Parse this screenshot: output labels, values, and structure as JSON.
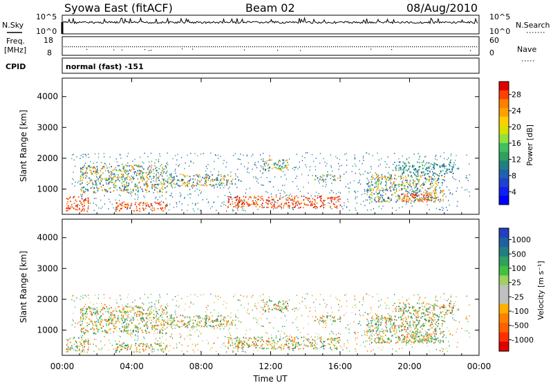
{
  "header": {
    "title": "Syowa East (fitACF)",
    "beam": "Beam 02",
    "date": "08/Aug/2010"
  },
  "noise_panel": {
    "left_label": "N.Sky",
    "right_label": "N.Search",
    "left_ticks": [
      "10^5",
      "10^0"
    ],
    "right_ticks": [
      "10^5",
      "10^0"
    ]
  },
  "freq_panel": {
    "left_label_1": "Freq.",
    "left_label_2": "[MHz]",
    "right_label": "Nave",
    "left_ticks": [
      "18",
      "8"
    ],
    "right_ticks": [
      "60",
      "0"
    ]
  },
  "cpid_panel": {
    "label": "CPID",
    "value": "normal (fast) -151"
  },
  "power_panel": {
    "ylabel": "Slant Range [km]",
    "y_ticks": [
      "1000",
      "2000",
      "3000",
      "4000"
    ],
    "colorbar_label": "Power [dB]",
    "colorbar_ticks": [
      "28",
      "24",
      "20",
      "16",
      "12",
      "8",
      "4"
    ],
    "colorbar_colors": [
      "#e00000",
      "#ff4000",
      "#ff8000",
      "#ffa000",
      "#ffd000",
      "#d8e000",
      "#90e040",
      "#40c060",
      "#30a060",
      "#208080",
      "#2060b0",
      "#2040d0",
      "#1020f0",
      "#0000ff"
    ]
  },
  "velocity_panel": {
    "ylabel": "Slant Range [km]",
    "y_ticks": [
      "1000",
      "2000",
      "3000",
      "4000"
    ],
    "colorbar_label": "Velocity [m s⁻¹]",
    "colorbar_ticks": [
      "1000",
      "500",
      "100",
      "25",
      "-25",
      "-100",
      "-500",
      "-1000"
    ],
    "colorbar_colors": [
      "#2040c0",
      "#2060a0",
      "#208080",
      "#30a060",
      "#40c040",
      "#a0d060",
      "#c0c0c0",
      "#c0c0c0",
      "#ffb000",
      "#ff8000",
      "#ff6000",
      "#ff3000",
      "#e00000"
    ]
  },
  "x_axis": {
    "label": "Time UT",
    "ticks": [
      "00:00",
      "04:00",
      "08:00",
      "12:00",
      "16:00",
      "20:00",
      "00:00"
    ]
  },
  "chart_data": {
    "type": "heatmap",
    "title": "Syowa East (fitACF)",
    "xlabel": "Time UT",
    "ylabel": "Slant Range [km]",
    "xlim_hours": [
      0,
      24
    ],
    "ylim_km": [
      180,
      4600
    ],
    "power_colorbar_db": [
      0,
      30
    ],
    "velocity_colorbar_ms": [
      -1000,
      1000
    ],
    "power_features": [
      {
        "t0": 0.2,
        "t1": 1.5,
        "r0": 300,
        "r1": 800,
        "level": "high"
      },
      {
        "t0": 1.0,
        "t1": 6.0,
        "r0": 900,
        "r1": 1800,
        "level": "mid"
      },
      {
        "t0": 3.0,
        "t1": 6.0,
        "r0": 300,
        "r1": 600,
        "level": "high"
      },
      {
        "t0": 6.0,
        "t1": 10.0,
        "r0": 1100,
        "r1": 1500,
        "level": "mid"
      },
      {
        "t0": 9.5,
        "t1": 16.0,
        "r0": 400,
        "r1": 800,
        "level": "high"
      },
      {
        "t0": 11.5,
        "t1": 13.0,
        "r0": 1600,
        "r1": 2000,
        "level": "mid"
      },
      {
        "t0": 14.5,
        "t1": 16.0,
        "r0": 1300,
        "r1": 1500,
        "level": "mid"
      },
      {
        "t0": 17.5,
        "t1": 22.0,
        "r0": 600,
        "r1": 1500,
        "level": "mid"
      },
      {
        "t0": 19.5,
        "t1": 21.5,
        "r0": 600,
        "r1": 900,
        "level": "high"
      },
      {
        "t0": 19.0,
        "t1": 22.5,
        "r0": 1500,
        "r1": 1900,
        "level": "low"
      }
    ]
  }
}
